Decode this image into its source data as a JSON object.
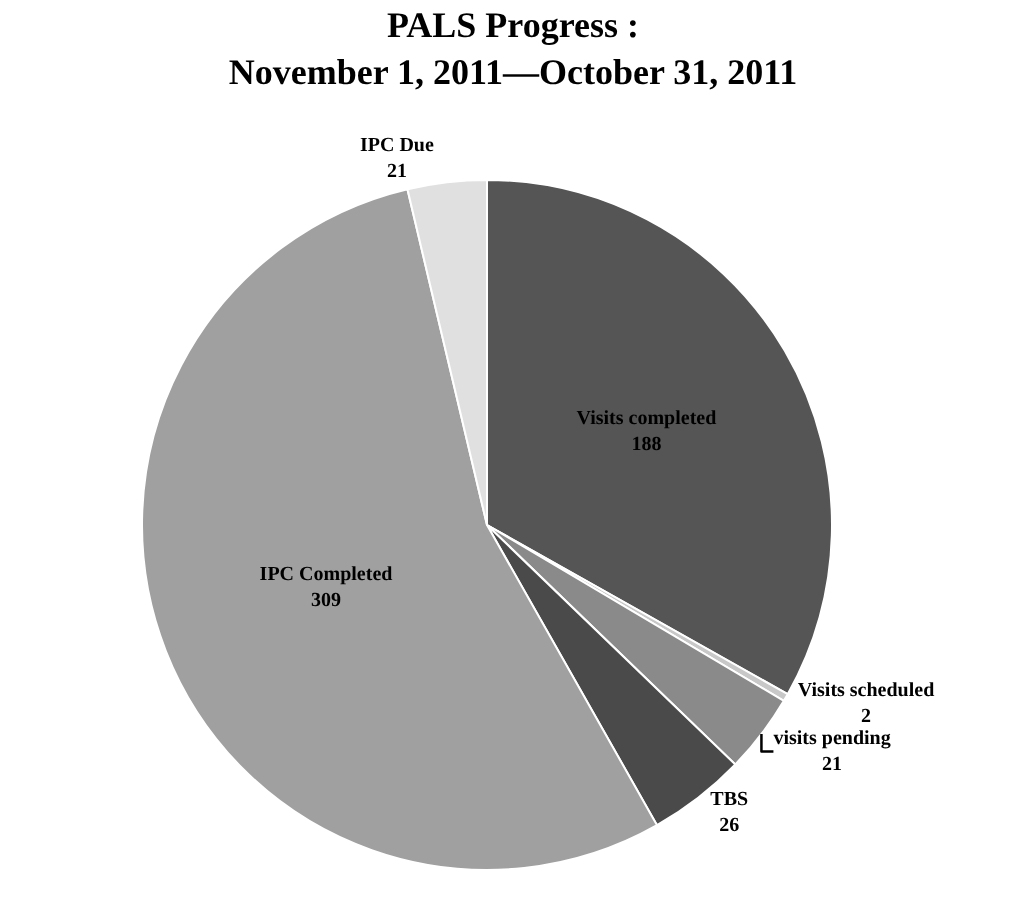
{
  "chart_data": {
    "type": "pie",
    "title": "PALS Progress :",
    "subtitle": "November 1, 2011—October 31, 2011",
    "categories": [
      "Visits completed",
      "Visits scheduled",
      "visits pending",
      "TBS",
      "IPC Completed",
      "IPC Due"
    ],
    "values": [
      188,
      2,
      21,
      26,
      309,
      21
    ],
    "colors": [
      "#555555",
      "#c8c8c8",
      "#8a8a8a",
      "#4a4a4a",
      "#a0a0a0",
      "#e0e0e0"
    ],
    "data_labels": true,
    "legend": false
  }
}
